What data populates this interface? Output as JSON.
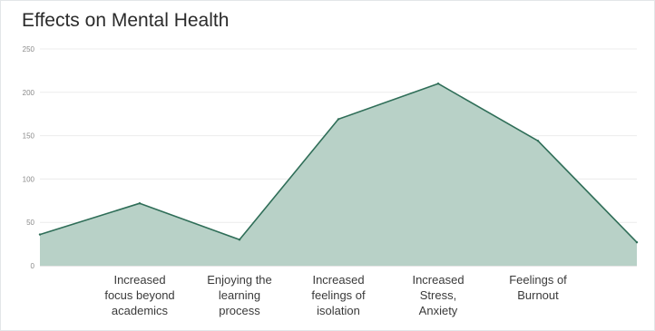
{
  "chart_data": {
    "type": "area",
    "title": "Effects on Mental Health",
    "xlabel": "",
    "ylabel": "",
    "categories": [
      "",
      "Increased\nfocus beyond\nacademics",
      "Enjoying the\nlearning\nprocess",
      "Increased\nfeelings of\nisolation",
      "Increased\nStress,\nAnxiety",
      "Feelings of\nBurnout",
      ""
    ],
    "values": [
      36,
      72,
      30,
      169,
      210,
      144,
      27
    ],
    "ylim": [
      0,
      250
    ],
    "yticks": [
      0,
      50,
      100,
      150,
      200,
      250
    ],
    "grid": true,
    "legend": "none",
    "colors": {
      "fill": "#b8d1c7",
      "line": "#2f6e58",
      "grid": "#ececec",
      "axis": "#c9c9c9"
    }
  }
}
